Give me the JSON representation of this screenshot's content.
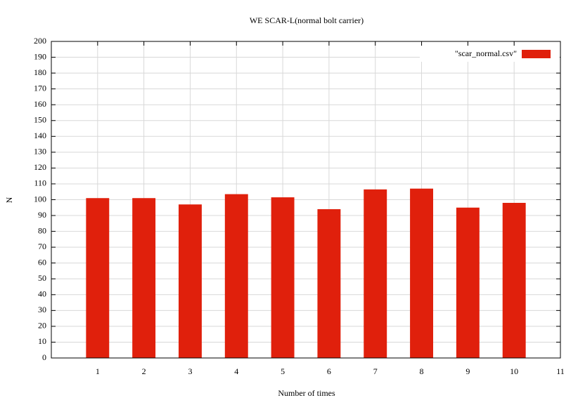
{
  "chart_data": {
    "type": "bar",
    "title": "WE SCAR-L(normal bolt carrier)",
    "x_label": "Number of times",
    "y_label": "N",
    "x": [
      1,
      2,
      3,
      4,
      5,
      6,
      7,
      8,
      9,
      10
    ],
    "series": [
      {
        "name": "\"scar_normal.csv\"",
        "color": "#e0200c",
        "values": [
          101,
          101,
          97,
          103.5,
          101.5,
          94,
          106.5,
          107,
          95,
          98
        ]
      }
    ],
    "xlim": [
      0,
      11
    ],
    "xticks": [
      1,
      2,
      3,
      4,
      5,
      6,
      7,
      8,
      9,
      10,
      11
    ],
    "ylim": [
      0,
      200
    ],
    "yticks": [
      0,
      10,
      20,
      30,
      40,
      50,
      60,
      70,
      80,
      90,
      100,
      110,
      120,
      130,
      140,
      150,
      160,
      170,
      180,
      190,
      200
    ],
    "bar_width": 0.5,
    "grid": true,
    "legend_position": "top-right"
  }
}
